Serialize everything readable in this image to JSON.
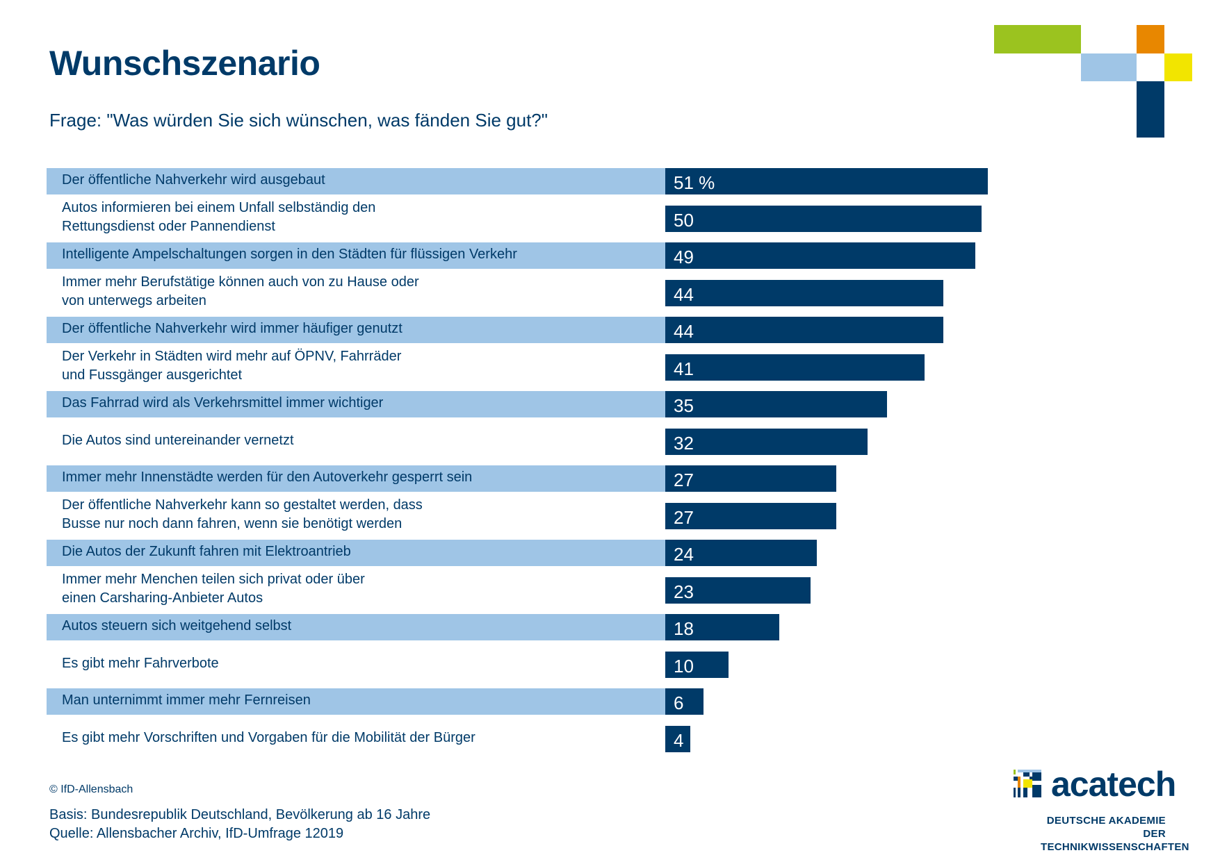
{
  "header": {
    "title": "Wunschszenario",
    "subtitle": "Frage: \"Was würden Sie sich wünschen, was fänden Sie gut?\""
  },
  "colors": {
    "bar": "#003a68",
    "band": "#9fc5e6",
    "text": "#003a68",
    "deco_green": "#9bc31f",
    "deco_orange": "#e88700",
    "deco_lightblue": "#9fc5e6",
    "deco_yellow": "#f2e500",
    "deco_darkblue": "#003a68"
  },
  "chart_data": {
    "type": "bar",
    "orientation": "horizontal",
    "title": "Wunschszenario",
    "subtitle": "Frage: \"Was würden Sie sich wünschen, was fänden Sie gut?\"",
    "unit": "%",
    "xlabel": "",
    "ylabel": "",
    "xlim": [
      0,
      51
    ],
    "grid": false,
    "legend": "none",
    "categories": [
      "Der öffentliche Nahverkehr wird ausgebaut",
      "Autos informieren bei einem Unfall selbständig den\nRettungsdienst oder Pannendienst",
      "Intelligente Ampelschaltungen sorgen in den Städten für flüssigen Verkehr",
      "Immer mehr Berufstätige können auch von zu Hause oder\nvon unterwegs arbeiten",
      "Der öffentliche Nahverkehr wird immer häufiger genutzt",
      "Der Verkehr in Städten wird mehr auf ÖPNV, Fahrräder\nund Fussgänger ausgerichtet",
      "Das Fahrrad wird als Verkehrsmittel immer wichtiger",
      "Die Autos sind untereinander vernetzt",
      "Immer mehr Innenstädte werden für den Autoverkehr gesperrt sein",
      "Der öffentliche Nahverkehr kann so gestaltet werden, dass\nBusse nur noch dann fahren, wenn sie benötigt werden",
      "Die Autos der Zukunft fahren mit Elektroantrieb",
      "Immer mehr Menchen teilen sich privat oder über\neinen Carsharing-Anbieter Autos",
      "Autos steuern sich weitgehend selbst",
      "Es gibt mehr Fahrverbote",
      "Man unternimmt immer mehr Fernreisen",
      "Es gibt mehr Vorschriften und Vorgaben für die Mobilität der Bürger"
    ],
    "values": [
      51,
      50,
      49,
      44,
      44,
      41,
      35,
      32,
      27,
      27,
      24,
      23,
      18,
      10,
      6,
      4
    ],
    "value_labels": [
      "51 %",
      "50",
      "49",
      "44",
      "44",
      "41",
      "35",
      "32",
      "27",
      "27",
      "24",
      "23",
      "18",
      "10",
      "6",
      "4"
    ]
  },
  "footer": {
    "copyright": "© IfD-Allensbach",
    "basis": "Basis: Bundesrepublik Deutschland, Bevölkerung ab 16 Jahre",
    "source": "Quelle: Allensbacher Archiv, IfD-Umfrage 12019"
  },
  "logo": {
    "name": "acatech",
    "subtitle_line1": "DEUTSCHE AKADEMIE DER",
    "subtitle_line2": "TECHNIKWISSENSCHAFTEN"
  }
}
